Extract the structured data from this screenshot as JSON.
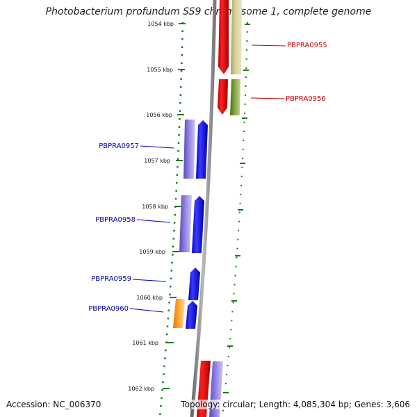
{
  "title": "Photobacterium profundum SS9 chromosome 1, complete genome",
  "accession": "Accession: NC_006370",
  "stats": "Topology: circular; Length: 4,085,304 bp; Genes: 3,606",
  "ticks": [
    {
      "kbp": 1054,
      "label": "1054 kbp"
    },
    {
      "kbp": 1055,
      "label": "1055 kbp"
    },
    {
      "kbp": 1056,
      "label": "1056 kbp"
    },
    {
      "kbp": 1057,
      "label": "1057 kbp"
    },
    {
      "kbp": 1058,
      "label": "1058 kbp"
    },
    {
      "kbp": 1059,
      "label": "1059 kbp"
    },
    {
      "kbp": 1060,
      "label": "1060 kbp"
    },
    {
      "kbp": 1061,
      "label": "1061 kbp"
    },
    {
      "kbp": 1062,
      "label": "1062 kbp"
    }
  ],
  "genes": [
    {
      "label": "PBPRA0955",
      "strand": "reverse",
      "color": "#cc0000"
    },
    {
      "label": "PBPRA0956",
      "strand": "reverse",
      "color": "#cc0000"
    },
    {
      "label": "PBPRA0957",
      "strand": "forward",
      "color": "#0000aa"
    },
    {
      "label": "PBPRA0958",
      "strand": "forward",
      "color": "#0000aa"
    },
    {
      "label": "PBPRA0959",
      "strand": "forward",
      "color": "#0000aa"
    },
    {
      "label": "PBPRA0960",
      "strand": "forward",
      "color": "#0000aa"
    }
  ],
  "colors": {
    "forward_gene": "#0000ee",
    "reverse_gene": "#dd0000",
    "cds_purple": "#6a5acd",
    "cds_olive": "#bdb76b",
    "cds_green": "#6b8e23",
    "cds_orange": "#ff8c00",
    "backbone": "#888888",
    "ticks": "#1a7a1a"
  }
}
